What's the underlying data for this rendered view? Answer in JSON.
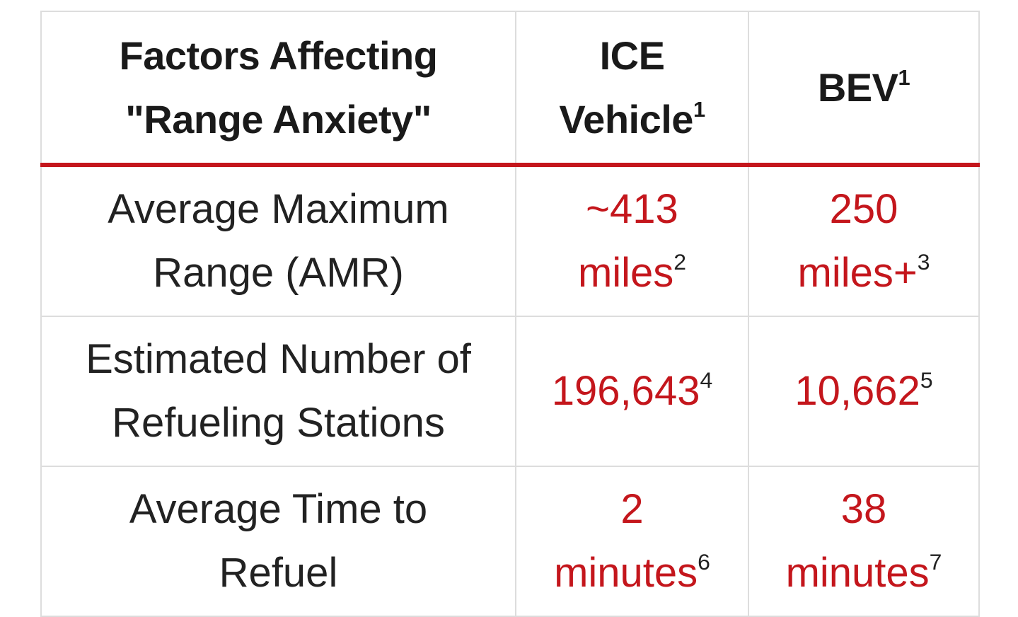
{
  "table": {
    "header": [
      {
        "text": "Factors Affecting\n\"Range Anxiety\""
      },
      {
        "text": "ICE\nVehicle",
        "sup": "1"
      },
      {
        "text": "BEV",
        "sup": "1"
      }
    ],
    "rows": [
      [
        {
          "text": "Average Maximum\nRange (AMR)"
        },
        {
          "text": "~413\nmiles",
          "sup": "2"
        },
        {
          "text": "250\nmiles+",
          "sup": "3"
        }
      ],
      [
        {
          "text": "Estimated Number of\nRefueling Stations"
        },
        {
          "text": "196,643",
          "sup": "4"
        },
        {
          "text": "10,662",
          "sup": "5"
        }
      ],
      [
        {
          "text": "Average Time to\nRefuel"
        },
        {
          "text": "2\nminutes",
          "sup": "6"
        },
        {
          "text": "38\nminutes",
          "sup": "7"
        }
      ]
    ]
  }
}
